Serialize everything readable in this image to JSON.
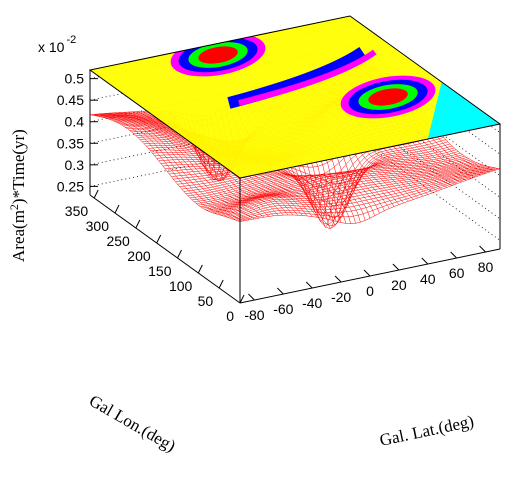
{
  "chart_data": {
    "type": "surface",
    "z_axis": {
      "label_prefix": "Area(m",
      "label_sup": "2",
      "label_suffix": ")*Time(yr)",
      "multiplier_text": "x 10",
      "multiplier_exp": "-2",
      "ticks": [
        "0.25",
        "0.3",
        "0.35",
        "0.4",
        "0.45",
        "0.5"
      ],
      "range": [
        0.23,
        0.52
      ]
    },
    "lon_axis": {
      "label": "Gal Lon.(deg)",
      "ticks": [
        "0",
        "50",
        "100",
        "150",
        "200",
        "250",
        "300",
        "350"
      ],
      "range": [
        0,
        360
      ]
    },
    "lat_axis": {
      "label": "Gal. Lat.(deg)",
      "ticks": [
        "-80",
        "-60",
        "-40",
        "-20",
        "0",
        "20",
        "40",
        "60",
        "80"
      ],
      "range": [
        -90,
        90
      ]
    },
    "surface_color": "#ff0000",
    "top_contour_palette": [
      "#ffff00",
      "#00ffff",
      "#ff00ff",
      "#0000ff",
      "#00ff00",
      "#ff0000"
    ],
    "grid": "dotted",
    "plateau_level": 0.4,
    "features": [
      {
        "lon": 130,
        "lat": 10,
        "depth": 0.16
      },
      {
        "lon": 330,
        "lat": -10,
        "depth": 0.14
      }
    ]
  }
}
